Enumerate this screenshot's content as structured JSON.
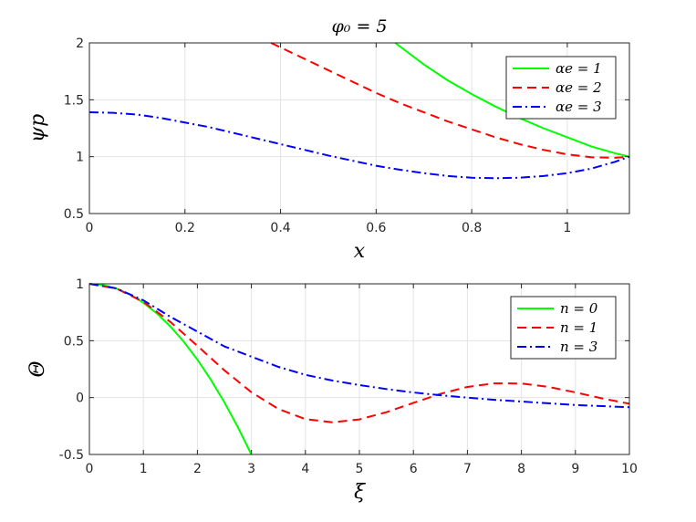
{
  "chart_data": [
    {
      "type": "line",
      "title": "φ₀ = 5",
      "xlabel": "x",
      "ylabel": "ψp",
      "xlim": [
        0,
        1.13
      ],
      "ylim": [
        0.5,
        2
      ],
      "xticks": [
        0,
        0.2,
        0.4,
        0.6,
        0.8,
        1
      ],
      "xtick_labels": [
        "0",
        "0.2",
        "0.4",
        "0.6",
        "0.8",
        "1"
      ],
      "yticks": [
        0.5,
        1,
        1.5,
        2
      ],
      "ytick_labels": [
        "0.5",
        "1",
        "1.5",
        "2"
      ],
      "grid": true,
      "legend_position": "top-right",
      "series": [
        {
          "name": "αe = 1",
          "color": "#00ff00",
          "dash": "solid",
          "x": [
            0.64,
            0.7,
            0.75,
            0.8,
            0.85,
            0.9,
            0.95,
            1.0,
            1.05,
            1.1,
            1.13
          ],
          "y": [
            2.0,
            1.81,
            1.67,
            1.55,
            1.44,
            1.34,
            1.25,
            1.17,
            1.09,
            1.03,
            1.0
          ]
        },
        {
          "name": "αe = 2",
          "color": "#ff0000",
          "dash": "dashed",
          "x": [
            0.38,
            0.45,
            0.5,
            0.55,
            0.6,
            0.65,
            0.7,
            0.75,
            0.8,
            0.85,
            0.9,
            0.95,
            1.0,
            1.05,
            1.1,
            1.13
          ],
          "y": [
            2.0,
            1.86,
            1.76,
            1.66,
            1.56,
            1.47,
            1.39,
            1.31,
            1.24,
            1.17,
            1.11,
            1.06,
            1.02,
            0.995,
            0.99,
            1.0
          ]
        },
        {
          "name": "αe = 3",
          "color": "#0000ff",
          "dash": "dashdot",
          "x": [
            0,
            0.05,
            0.1,
            0.15,
            0.2,
            0.25,
            0.3,
            0.35,
            0.4,
            0.45,
            0.5,
            0.55,
            0.6,
            0.65,
            0.7,
            0.75,
            0.8,
            0.85,
            0.9,
            0.95,
            1.0,
            1.05,
            1.1,
            1.13
          ],
          "y": [
            1.39,
            1.385,
            1.37,
            1.34,
            1.3,
            1.26,
            1.21,
            1.16,
            1.11,
            1.06,
            1.01,
            0.965,
            0.92,
            0.885,
            0.855,
            0.83,
            0.815,
            0.81,
            0.815,
            0.83,
            0.855,
            0.895,
            0.955,
            1.0
          ]
        }
      ]
    },
    {
      "type": "line",
      "title": "",
      "xlabel": "ξ",
      "ylabel": "Θ",
      "xlim": [
        0,
        10
      ],
      "ylim": [
        -0.5,
        1
      ],
      "xticks": [
        0,
        1,
        2,
        3,
        4,
        5,
        6,
        7,
        8,
        9,
        10
      ],
      "xtick_labels": [
        "0",
        "1",
        "2",
        "3",
        "4",
        "5",
        "6",
        "7",
        "8",
        "9",
        "10"
      ],
      "yticks": [
        -0.5,
        0,
        0.5,
        1
      ],
      "ytick_labels": [
        "-0.5",
        "0",
        "0.5",
        "1"
      ],
      "grid": true,
      "legend_position": "top-right",
      "series": [
        {
          "name": "n = 0",
          "color": "#00ff00",
          "dash": "solid",
          "x": [
            0,
            0.25,
            0.5,
            0.75,
            1.0,
            1.25,
            1.5,
            1.75,
            2.0,
            2.25,
            2.5,
            2.75,
            3.0
          ],
          "y": [
            1.0,
            0.9896,
            0.9583,
            0.9063,
            0.8333,
            0.7396,
            0.625,
            0.4896,
            0.3333,
            0.1563,
            -0.0417,
            -0.2604,
            -0.5
          ]
        },
        {
          "name": "n = 1",
          "color": "#ff0000",
          "dash": "dashed",
          "x": [
            0,
            0.5,
            1.0,
            1.5,
            2.0,
            2.5,
            3.0,
            3.5,
            4.0,
            4.5,
            5.0,
            5.5,
            6.0,
            6.5,
            7.0,
            7.5,
            8.0,
            8.5,
            9.0,
            9.5,
            10.0
          ],
          "y": [
            1.0,
            0.9589,
            0.8415,
            0.665,
            0.4546,
            0.2394,
            0.047,
            -0.1002,
            -0.1892,
            -0.2172,
            -0.1918,
            -0.1283,
            -0.0466,
            0.0331,
            0.0939,
            0.1251,
            0.1237,
            0.0939,
            0.0458,
            -0.0078,
            -0.0544
          ]
        },
        {
          "name": "n = 3",
          "color": "#0000ff",
          "dash": "dashdot",
          "x": [
            0,
            0.5,
            1.0,
            1.5,
            2.0,
            2.5,
            3.0,
            3.5,
            4.0,
            4.5,
            5.0,
            5.5,
            6.0,
            6.5,
            7.0,
            7.5,
            8.0,
            8.5,
            9.0,
            9.5,
            10.0
          ],
          "y": [
            1.0,
            0.96,
            0.855,
            0.71,
            0.58,
            0.45,
            0.36,
            0.27,
            0.2,
            0.15,
            0.11,
            0.075,
            0.045,
            0.02,
            0.0,
            -0.02,
            -0.035,
            -0.05,
            -0.065,
            -0.075,
            -0.085
          ]
        }
      ]
    }
  ]
}
